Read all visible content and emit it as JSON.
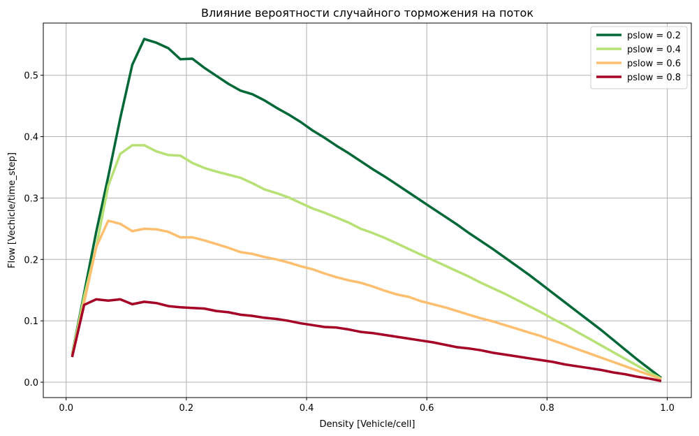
{
  "chart_data": {
    "type": "line",
    "title": "Влияние вероятности случайного торможения на поток",
    "xlabel": "Density [Vehicle/cell]",
    "ylabel": "Flow [Vechicle/time_step]",
    "xlim": [
      -0.038,
      1.04
    ],
    "ylim": [
      -0.025,
      0.585
    ],
    "xticks": [
      0.0,
      0.2,
      0.4,
      0.6,
      0.8,
      1.0
    ],
    "xtick_labels": [
      "0.0",
      "0.2",
      "0.4",
      "0.6",
      "0.8",
      "1.0"
    ],
    "yticks": [
      0.0,
      0.1,
      0.2,
      0.3,
      0.4,
      0.5
    ],
    "ytick_labels": [
      "0.0",
      "0.1",
      "0.2",
      "0.3",
      "0.4",
      "0.5"
    ],
    "grid": true,
    "legend_position": "top-right",
    "x": [
      0.01,
      0.03,
      0.05,
      0.07,
      0.09,
      0.11,
      0.13,
      0.15,
      0.17,
      0.19,
      0.21,
      0.23,
      0.25,
      0.27,
      0.29,
      0.31,
      0.33,
      0.35,
      0.37,
      0.39,
      0.41,
      0.43,
      0.45,
      0.47,
      0.49,
      0.51,
      0.53,
      0.55,
      0.57,
      0.59,
      0.61,
      0.63,
      0.65,
      0.67,
      0.69,
      0.71,
      0.73,
      0.75,
      0.77,
      0.79,
      0.81,
      0.83,
      0.85,
      0.87,
      0.89,
      0.91,
      0.93,
      0.95,
      0.97,
      0.99
    ],
    "series": [
      {
        "name": "pslow = 0.2",
        "color": "#006837",
        "values": [
          0.045,
          0.145,
          0.245,
          0.335,
          0.43,
          0.517,
          0.559,
          0.553,
          0.544,
          0.526,
          0.527,
          0.512,
          0.499,
          0.486,
          0.475,
          0.469,
          0.459,
          0.447,
          0.436,
          0.424,
          0.41,
          0.398,
          0.385,
          0.373,
          0.36,
          0.347,
          0.335,
          0.322,
          0.309,
          0.296,
          0.283,
          0.27,
          0.257,
          0.243,
          0.23,
          0.217,
          0.203,
          0.189,
          0.175,
          0.16,
          0.145,
          0.13,
          0.115,
          0.1,
          0.085,
          0.069,
          0.053,
          0.037,
          0.022,
          0.007
        ]
      },
      {
        "name": "pslow = 0.4",
        "color": "#b7e075",
        "values": [
          0.044,
          0.14,
          0.22,
          0.32,
          0.372,
          0.386,
          0.386,
          0.376,
          0.37,
          0.369,
          0.357,
          0.349,
          0.343,
          0.338,
          0.333,
          0.324,
          0.314,
          0.308,
          0.301,
          0.292,
          0.283,
          0.276,
          0.268,
          0.26,
          0.25,
          0.243,
          0.235,
          0.226,
          0.217,
          0.208,
          0.199,
          0.19,
          0.181,
          0.172,
          0.162,
          0.153,
          0.144,
          0.134,
          0.124,
          0.114,
          0.103,
          0.093,
          0.082,
          0.071,
          0.06,
          0.049,
          0.038,
          0.027,
          0.016,
          0.006
        ]
      },
      {
        "name": "pslow = 0.6",
        "color": "#fdbf6f",
        "values": [
          0.043,
          0.13,
          0.22,
          0.263,
          0.258,
          0.246,
          0.25,
          0.249,
          0.245,
          0.236,
          0.236,
          0.231,
          0.225,
          0.219,
          0.212,
          0.209,
          0.204,
          0.2,
          0.195,
          0.189,
          0.184,
          0.177,
          0.171,
          0.166,
          0.162,
          0.156,
          0.149,
          0.143,
          0.139,
          0.132,
          0.127,
          0.122,
          0.116,
          0.11,
          0.104,
          0.099,
          0.093,
          0.087,
          0.081,
          0.075,
          0.068,
          0.061,
          0.054,
          0.047,
          0.04,
          0.033,
          0.026,
          0.019,
          0.012,
          0.005
        ]
      },
      {
        "name": "pslow = 0.8",
        "color": "#a50026",
        "values": [
          0.041,
          0.126,
          0.135,
          0.133,
          0.135,
          0.127,
          0.131,
          0.129,
          0.124,
          0.122,
          0.121,
          0.12,
          0.116,
          0.114,
          0.11,
          0.108,
          0.105,
          0.103,
          0.1,
          0.096,
          0.093,
          0.09,
          0.089,
          0.086,
          0.082,
          0.08,
          0.077,
          0.074,
          0.071,
          0.068,
          0.065,
          0.061,
          0.057,
          0.055,
          0.052,
          0.048,
          0.045,
          0.042,
          0.039,
          0.036,
          0.033,
          0.029,
          0.026,
          0.023,
          0.02,
          0.016,
          0.013,
          0.009,
          0.006,
          0.002
        ]
      }
    ]
  }
}
